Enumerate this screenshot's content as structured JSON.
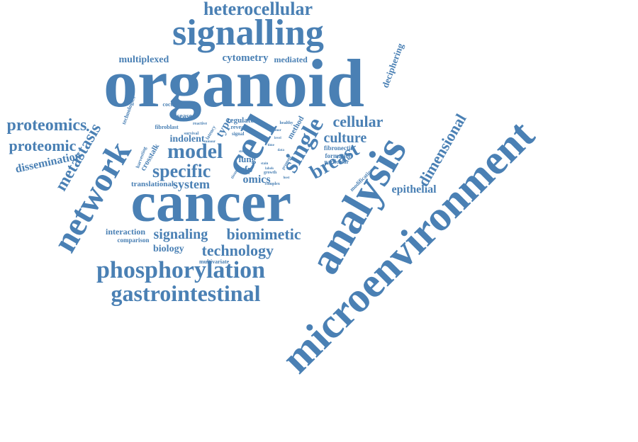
{
  "color": "#4a80b4",
  "words": [
    {
      "id": "microenvironment",
      "text": "microenvironment"
    },
    {
      "id": "organoid",
      "text": "organoid"
    },
    {
      "id": "cancer",
      "text": "cancer"
    },
    {
      "id": "analysis",
      "text": "analysis"
    },
    {
      "id": "signalling",
      "text": "signalling"
    },
    {
      "id": "cell",
      "text": "cell"
    },
    {
      "id": "network",
      "text": "network"
    },
    {
      "id": "phosphorylation",
      "text": "phosphorylation"
    },
    {
      "id": "gastrointestinal",
      "text": "gastrointestinal"
    },
    {
      "id": "heterocellular",
      "text": "heterocellular"
    },
    {
      "id": "single",
      "text": "single"
    },
    {
      "id": "metastasis",
      "text": "metastasis"
    },
    {
      "id": "model",
      "text": "model"
    },
    {
      "id": "specific",
      "text": "specific"
    },
    {
      "id": "breast",
      "text": "breast"
    },
    {
      "id": "cellular",
      "text": "cellular"
    },
    {
      "id": "proteomics",
      "text": "proteomics"
    },
    {
      "id": "proteomic",
      "text": "proteomic"
    },
    {
      "id": "dimensional",
      "text": "dimensional"
    },
    {
      "id": "technology",
      "text": "technology"
    },
    {
      "id": "biomimetic",
      "text": "biomimetic"
    },
    {
      "id": "signaling",
      "text": "signaling"
    },
    {
      "id": "dissemination",
      "text": "dissemination"
    },
    {
      "id": "culture",
      "text": "culture"
    },
    {
      "id": "epithelial",
      "text": "epithelial"
    },
    {
      "id": "system",
      "text": "system"
    },
    {
      "id": "multiplexed",
      "text": "multiplexed"
    },
    {
      "id": "cytometry",
      "text": "cytometry"
    },
    {
      "id": "mediated",
      "text": "mediated"
    },
    {
      "id": "deciphering",
      "text": "deciphering"
    },
    {
      "id": "indolent",
      "text": "indolent"
    },
    {
      "id": "type",
      "text": "type"
    },
    {
      "id": "omics",
      "text": "omics"
    },
    {
      "id": "interaction",
      "text": "interaction"
    },
    {
      "id": "biology",
      "text": "biology"
    },
    {
      "id": "translational",
      "text": "translational"
    },
    {
      "id": "crosstalk",
      "text": "crosstalk"
    },
    {
      "id": "lung",
      "text": "lung"
    },
    {
      "id": "srfp",
      "text": "srfp"
    },
    {
      "id": "regulate",
      "text": "regulate"
    },
    {
      "id": "method",
      "text": "method"
    },
    {
      "id": "disease",
      "text": "disease"
    },
    {
      "id": "fibroblast",
      "text": "fibroblast"
    },
    {
      "id": "cocultures",
      "text": "cocultures"
    },
    {
      "id": "technologies",
      "text": "technologies"
    },
    {
      "id": "comparison",
      "text": "comparison"
    },
    {
      "id": "multivariate",
      "text": "multivariate"
    },
    {
      "id": "formation",
      "text": "formation"
    },
    {
      "id": "fibronectin",
      "text": "fibronectin"
    },
    {
      "id": "particular",
      "text": "particular"
    },
    {
      "id": "modification",
      "text": "modification"
    },
    {
      "id": "reveal",
      "text": "reveal"
    },
    {
      "id": "signal",
      "text": "signal"
    },
    {
      "id": "reactive",
      "text": "reactive"
    },
    {
      "id": "survival",
      "text": "survival"
    },
    {
      "id": "latency",
      "text": "latency"
    },
    {
      "id": "harvesting",
      "text": "harvesting"
    },
    {
      "id": "healthy",
      "text": "healthy"
    },
    {
      "id": "complex",
      "text": "complex"
    },
    {
      "id": "tissue",
      "text": "tissue"
    },
    {
      "id": "promote",
      "text": "promote"
    },
    {
      "id": "growth",
      "text": "growth"
    },
    {
      "id": "time",
      "text": "time"
    },
    {
      "id": "stain",
      "text": "stain"
    },
    {
      "id": "labels",
      "text": "labels"
    },
    {
      "id": "tumour",
      "text": "tumour"
    },
    {
      "id": "stem",
      "text": "stem"
    },
    {
      "id": "data",
      "text": "data"
    },
    {
      "id": "level",
      "text": "level"
    },
    {
      "id": "host",
      "text": "host"
    },
    {
      "id": "tumor",
      "text": "tumor"
    }
  ]
}
